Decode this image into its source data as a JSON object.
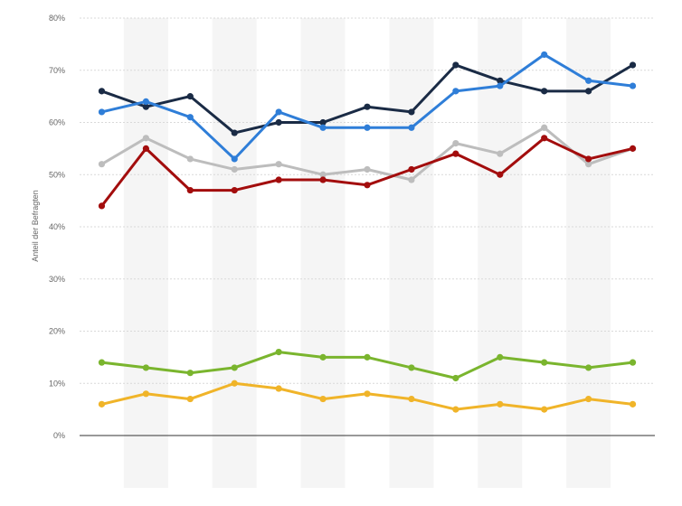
{
  "chart_data": {
    "type": "line",
    "ylabel": "Anteil der Befragten",
    "ylim": [
      0,
      80
    ],
    "yticks": [
      0,
      10,
      20,
      30,
      40,
      50,
      60,
      70,
      80
    ],
    "ytick_labels": [
      "0%",
      "10%",
      "20%",
      "30%",
      "40%",
      "50%",
      "60%",
      "70%",
      "80%"
    ],
    "x_count": 13,
    "grid": true,
    "series": [
      {
        "color": "#1a2b45",
        "values": [
          66,
          63,
          65,
          58,
          60,
          60,
          63,
          62,
          71,
          68,
          66,
          66,
          71
        ]
      },
      {
        "color": "#2f7ed8",
        "values": [
          62,
          64,
          61,
          53,
          62,
          59,
          59,
          59,
          66,
          67,
          73,
          68,
          67
        ]
      },
      {
        "color": "#bdbdbd",
        "values": [
          52,
          57,
          53,
          51,
          52,
          50,
          51,
          49,
          56,
          54,
          59,
          52,
          55
        ]
      },
      {
        "color": "#a30d0d",
        "values": [
          44,
          55,
          47,
          47,
          49,
          49,
          48,
          51,
          54,
          50,
          57,
          53,
          55
        ]
      },
      {
        "color": "#7ab52e",
        "values": [
          14,
          13,
          12,
          13,
          16,
          15,
          15,
          13,
          11,
          15,
          14,
          13,
          14
        ]
      },
      {
        "color": "#f0b429",
        "values": [
          6,
          8,
          7,
          10,
          9,
          7,
          8,
          7,
          5,
          6,
          5,
          7,
          6
        ]
      }
    ]
  }
}
